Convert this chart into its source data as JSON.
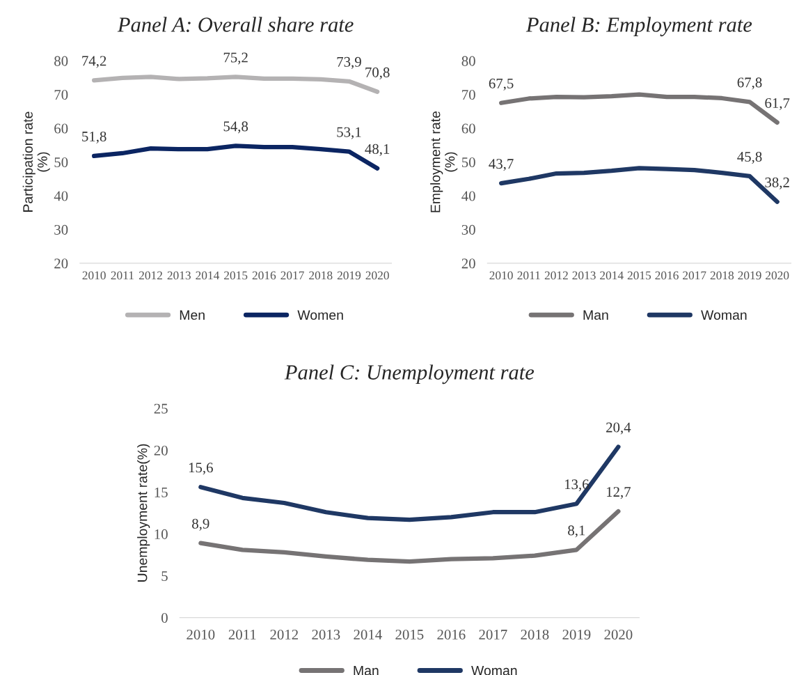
{
  "chart_data": [
    {
      "type": "line",
      "title": "Panel A: Overall share rate",
      "ylabel": "Participation rate\n(%)",
      "categories": [
        "2010",
        "2011",
        "2012",
        "2013",
        "2014",
        "2015",
        "2016",
        "2017",
        "2018",
        "2019",
        "2020"
      ],
      "ylim": [
        20,
        80
      ],
      "yticks": [
        20,
        30,
        40,
        50,
        60,
        70,
        80
      ],
      "legend": "bottom",
      "grid": false,
      "series": [
        {
          "name": "Men",
          "color": "#b4b2b3",
          "values": [
            74.2,
            74.9,
            75.2,
            74.6,
            74.8,
            75.2,
            74.7,
            74.7,
            74.5,
            73.9,
            70.8
          ],
          "value_labels": [
            "74,2",
            null,
            null,
            null,
            null,
            "75,2",
            null,
            null,
            null,
            "73,9",
            "70,8"
          ]
        },
        {
          "name": "Women",
          "color": "#0b2562",
          "values": [
            51.8,
            52.6,
            54.0,
            53.8,
            53.8,
            54.8,
            54.4,
            54.4,
            53.8,
            53.1,
            48.1
          ],
          "value_labels": [
            "51,8",
            null,
            null,
            null,
            null,
            "54,8",
            null,
            null,
            null,
            "53,1",
            "48,1"
          ]
        }
      ]
    },
    {
      "type": "line",
      "title": "Panel B: Employment rate",
      "ylabel": "Employment rate\n(%)",
      "categories": [
        "2010",
        "2011",
        "2012",
        "2013",
        "2014",
        "2015",
        "2016",
        "2017",
        "2018",
        "2019",
        "2020"
      ],
      "ylim": [
        20,
        80
      ],
      "yticks": [
        20,
        30,
        40,
        50,
        60,
        70,
        80
      ],
      "legend": "bottom",
      "grid": false,
      "series": [
        {
          "name": "Man",
          "color": "#767374",
          "values": [
            67.5,
            68.8,
            69.3,
            69.2,
            69.5,
            70.0,
            69.3,
            69.3,
            68.9,
            67.8,
            61.7
          ],
          "value_labels": [
            "67,5",
            null,
            null,
            null,
            null,
            null,
            null,
            null,
            null,
            "67,8",
            "61,7"
          ]
        },
        {
          "name": "Woman",
          "color": "#1f3864",
          "values": [
            43.7,
            45.0,
            46.6,
            46.8,
            47.4,
            48.2,
            47.9,
            47.6,
            46.8,
            45.8,
            38.2
          ],
          "value_labels": [
            "43,7",
            null,
            null,
            null,
            null,
            null,
            null,
            null,
            null,
            "45,8",
            "38,2"
          ]
        }
      ]
    },
    {
      "type": "line",
      "title": "Panel C: Unemployment rate",
      "ylabel": "Unemployment rate(%)",
      "categories": [
        "2010",
        "2011",
        "2012",
        "2013",
        "2014",
        "2015",
        "2016",
        "2017",
        "2018",
        "2019",
        "2020"
      ],
      "ylim": [
        0,
        25
      ],
      "yticks": [
        0,
        5,
        10,
        15,
        20,
        25
      ],
      "legend": "bottom",
      "grid": false,
      "series": [
        {
          "name": "Man",
          "color": "#767374",
          "values": [
            8.9,
            8.1,
            7.8,
            7.3,
            6.9,
            6.7,
            7.0,
            7.1,
            7.4,
            8.1,
            12.7
          ],
          "value_labels": [
            "8,9",
            null,
            null,
            null,
            null,
            null,
            null,
            null,
            null,
            "8,1",
            "12,7"
          ]
        },
        {
          "name": "Woman",
          "color": "#1f3864",
          "values": [
            15.6,
            14.3,
            13.7,
            12.6,
            11.9,
            11.7,
            12.0,
            12.6,
            12.6,
            13.6,
            20.4
          ],
          "value_labels": [
            "15,6",
            null,
            null,
            null,
            null,
            null,
            null,
            null,
            null,
            "13,6",
            "20,4"
          ]
        }
      ]
    }
  ]
}
